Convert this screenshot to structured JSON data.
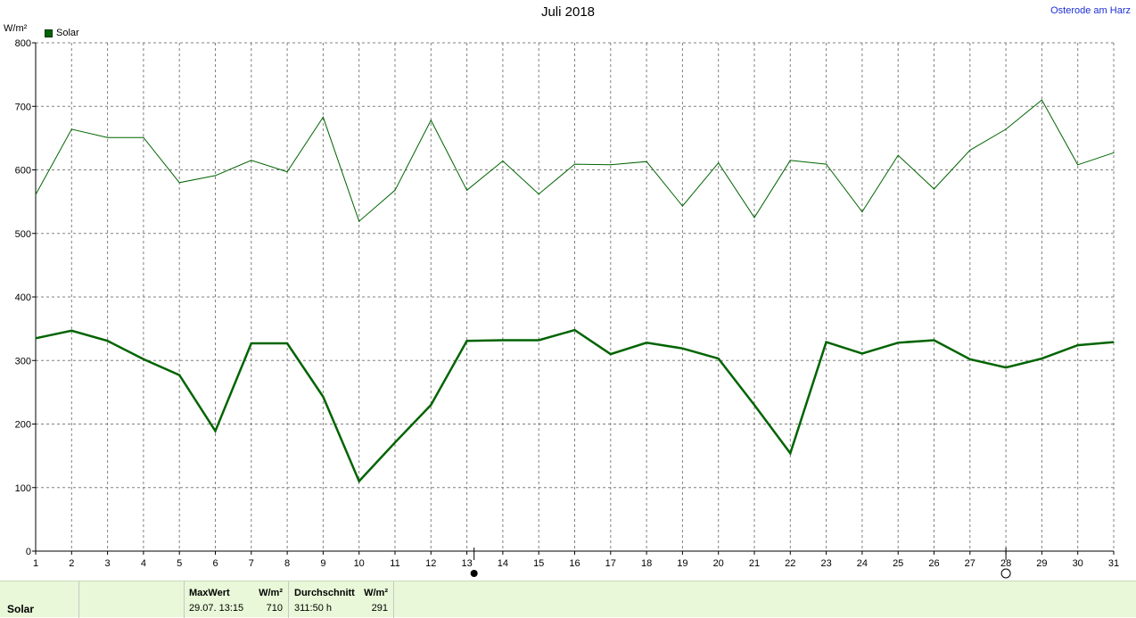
{
  "title": "Juli 2018",
  "location": "Osterode am Harz",
  "unit": "W/m²",
  "legend": {
    "label": "Solar"
  },
  "colors": {
    "series": "#006400",
    "grid": "#808080",
    "link": "#1b2fd6",
    "footer_bg": "#e8f8d8"
  },
  "footer": {
    "name": "Solar",
    "max_header": "MaxWert",
    "max_unit": "W/m²",
    "max_datetime": "29.07.  13:15",
    "max_value": "710",
    "avg_header": "Durchschnitt",
    "avg_unit": "W/m²",
    "avg_hours": "311:50 h",
    "avg_value": "291"
  },
  "chart_data": {
    "type": "line",
    "x": [
      1,
      2,
      3,
      4,
      5,
      6,
      7,
      8,
      9,
      10,
      11,
      12,
      13,
      14,
      15,
      16,
      17,
      18,
      19,
      20,
      21,
      22,
      23,
      24,
      25,
      26,
      27,
      28,
      29,
      30,
      31
    ],
    "xlim": [
      1,
      31
    ],
    "ylim": [
      0,
      800
    ],
    "yticks": [
      0,
      100,
      200,
      300,
      400,
      500,
      600,
      700,
      800
    ],
    "grid": true,
    "legend_position": "top-left",
    "series": [
      {
        "name": "Solar",
        "values": [
          561,
          664,
          651,
          651,
          580,
          591,
          615,
          597,
          683,
          519,
          568,
          678,
          568,
          614,
          562,
          609,
          608,
          613,
          543,
          611,
          525,
          615,
          609,
          534,
          623,
          570,
          631,
          664,
          710,
          608,
          627
        ]
      },
      {
        "values": [
          335,
          347,
          331,
          302,
          277,
          189,
          327,
          327,
          243,
          110,
          171,
          230,
          331,
          332,
          332,
          348,
          310,
          328,
          319,
          303,
          230,
          154,
          329,
          311,
          328,
          332,
          302,
          289,
          303,
          324,
          329
        ]
      }
    ],
    "markers": [
      {
        "x": 13.2,
        "symbol": "filled-circle"
      },
      {
        "x": 28,
        "symbol": "open-circle"
      }
    ]
  }
}
